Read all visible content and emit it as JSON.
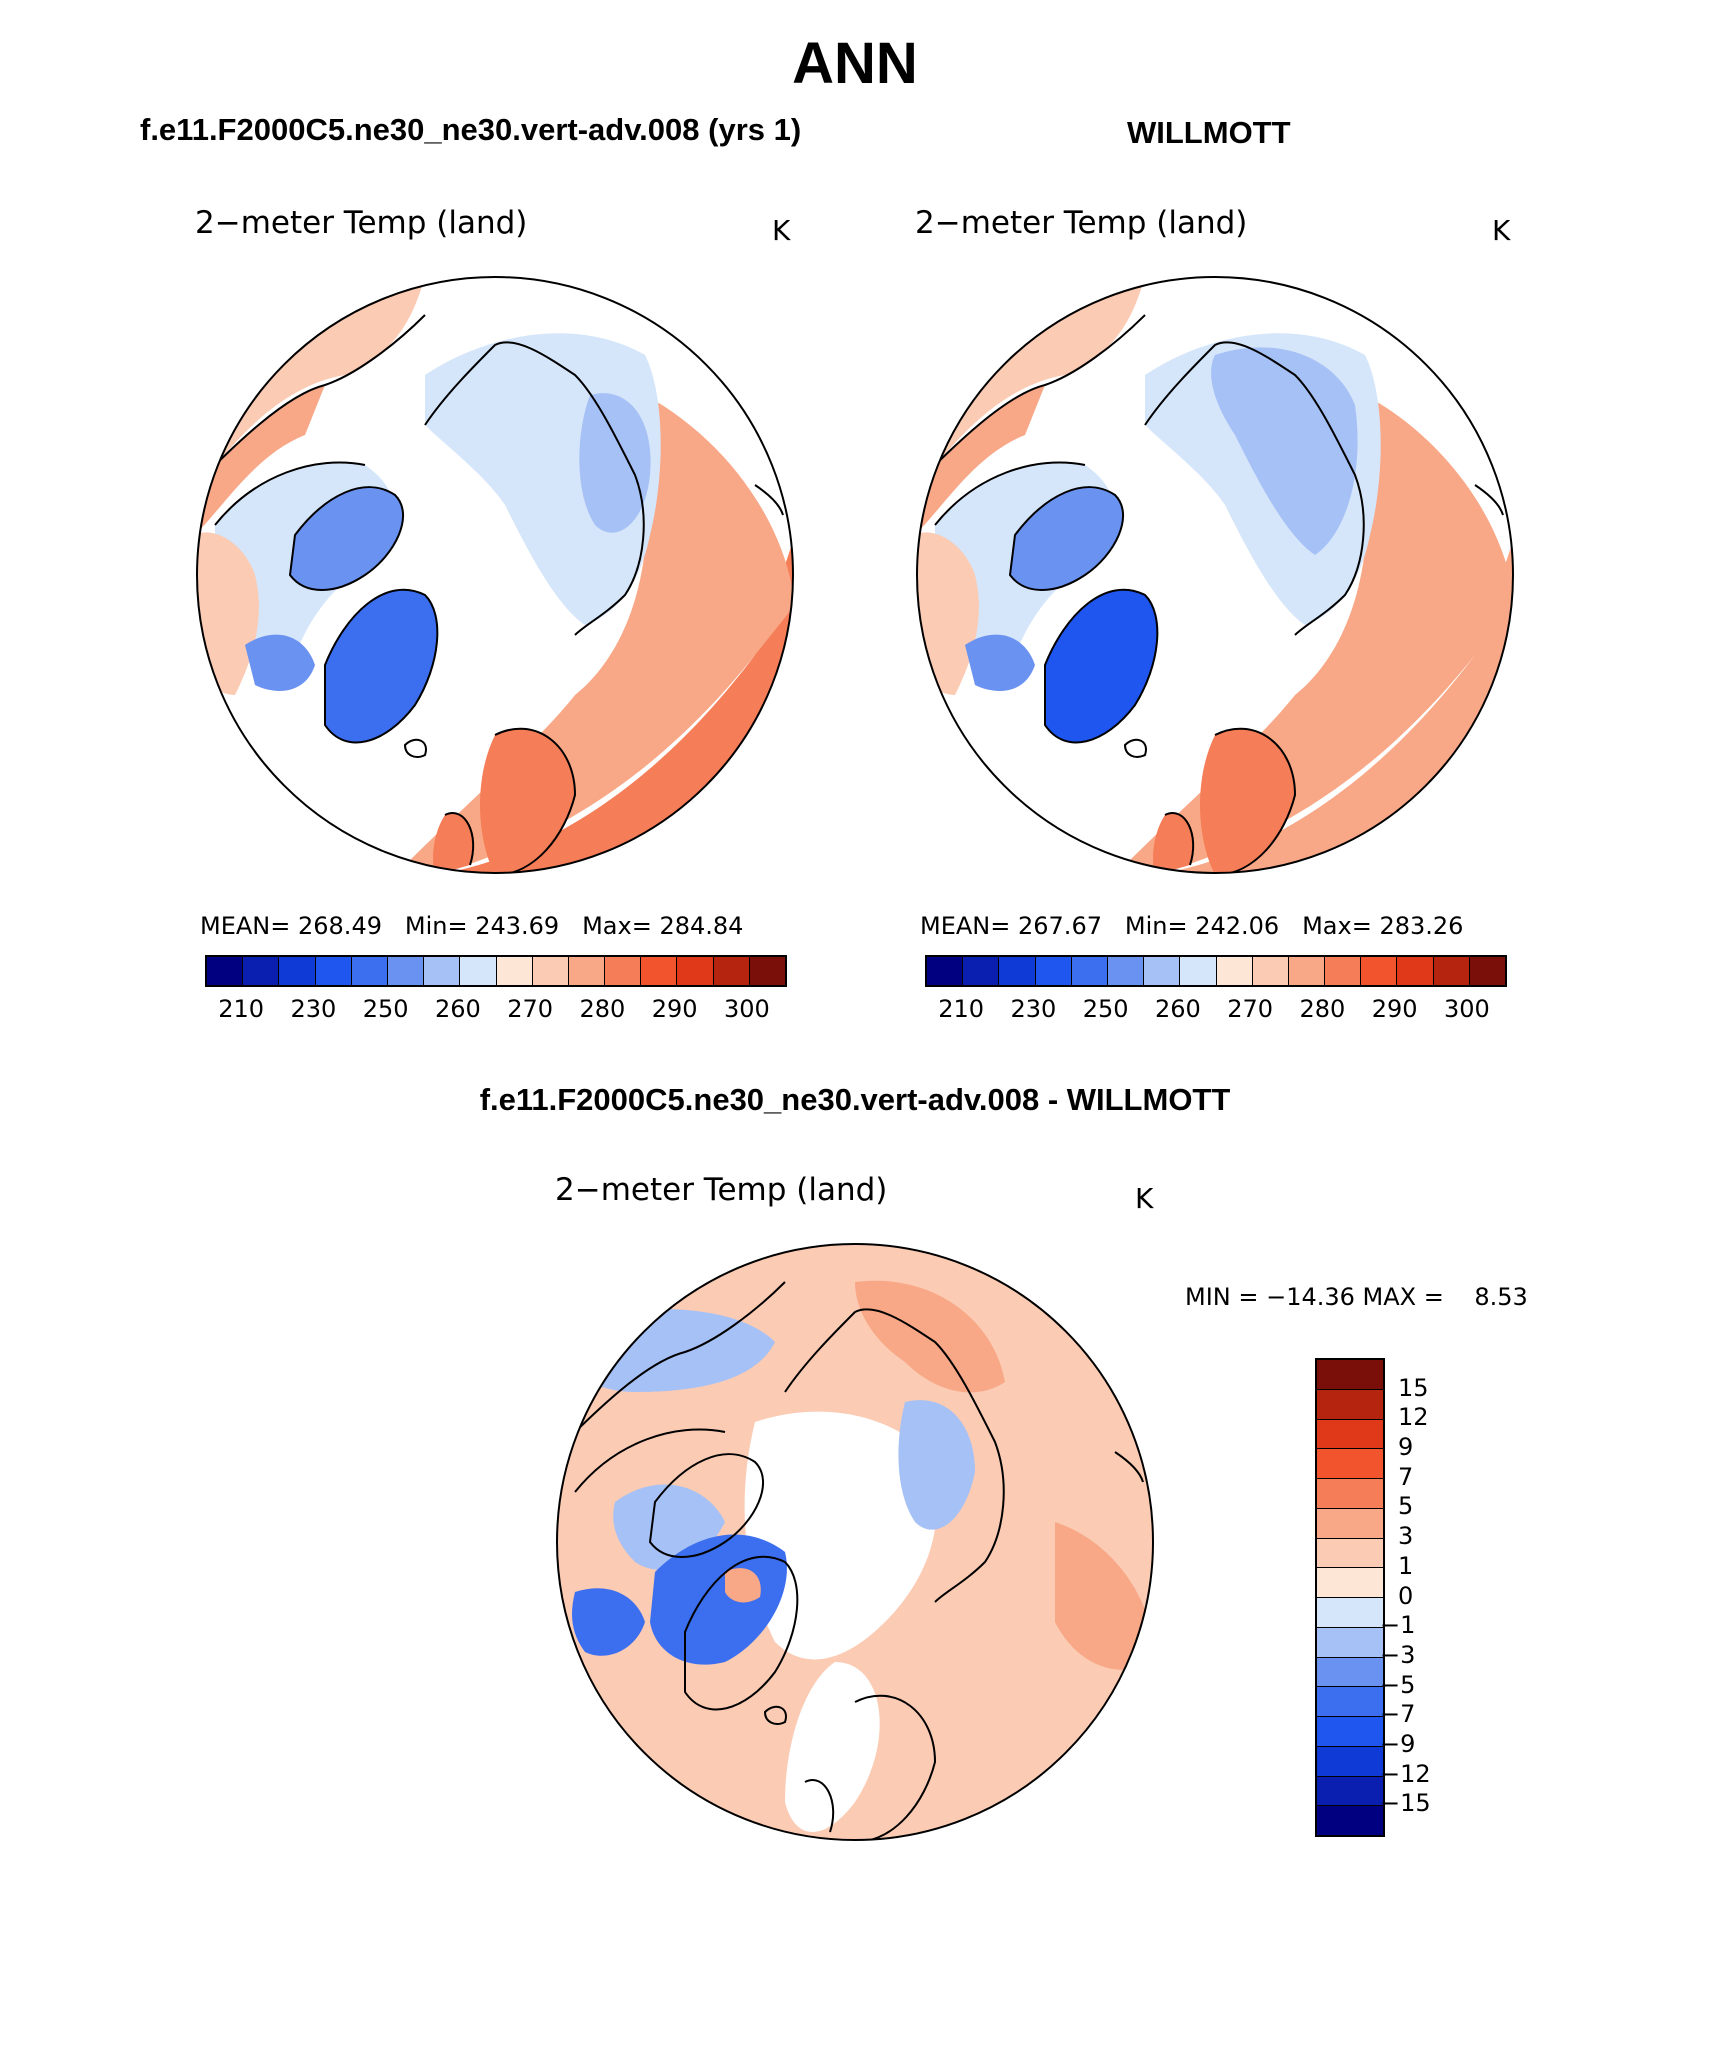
{
  "figure": {
    "title": "ANN",
    "panel_left_title": "f.e11.F2000C5.ne30_ne30.vert-adv.008 (yrs 1)",
    "panel_right_title": "WILLMOTT",
    "diff_title": "f.e11.F2000C5.ne30_ne30.vert-adv.008 - WILLMOTT"
  },
  "panels": [
    {
      "variable": "2−meter Temp (land)",
      "units": "K",
      "mean_label": "MEAN=",
      "mean": "268.49",
      "min_label": "Min=",
      "min": "243.69",
      "max_label": "Max=",
      "max": "284.84"
    },
    {
      "variable": "2−meter Temp (land)",
      "units": "K",
      "mean_label": "MEAN=",
      "mean": "267.67",
      "min_label": "Min=",
      "min": "242.06",
      "max_label": "Max=",
      "max": "283.26"
    },
    {
      "variable": "2−meter Temp (land)",
      "units": "K",
      "minmax_text": "MIN = −14.36 MAX =    8.53"
    }
  ],
  "colorbar_abs": {
    "colors": [
      "#000080",
      "#0a1fb0",
      "#0f3ad6",
      "#1e56ef",
      "#3b6fef",
      "#6a92f0",
      "#a6c1f5",
      "#d6e6fa",
      "#fde6d6",
      "#fbcbb4",
      "#f8a886",
      "#f57d57",
      "#f2542e",
      "#e0391a",
      "#b5240f",
      "#7a0f0a"
    ],
    "ticks": [
      "210",
      "230",
      "250",
      "260",
      "270",
      "280",
      "290",
      "300"
    ]
  },
  "colorbar_diff": {
    "colors": [
      "#7a0f0a",
      "#b5240f",
      "#e0391a",
      "#f2542e",
      "#f57d57",
      "#f8a886",
      "#fbcbb4",
      "#fde6d6",
      "#d6e6fa",
      "#a6c1f5",
      "#6a92f0",
      "#3b6fef",
      "#1e56ef",
      "#0f3ad6",
      "#0a1fb0",
      "#000080"
    ],
    "ticks": [
      "15",
      "12",
      "9",
      "7",
      "5",
      "3",
      "1",
      "0",
      "−1",
      "−3",
      "−5",
      "−7",
      "−9",
      "−12",
      "−15"
    ]
  },
  "map_colors": {
    "ocean": "#ffffff",
    "ice_sheet_left": "#3b6fef",
    "ice_sheet_right": "#1e56ef",
    "siberia": "#d6e6fa",
    "siberia_core": "#a6c1f5",
    "canada": "#d6e6fa",
    "arctic_islands": "#6a92f0",
    "alaska": "#fbcbb4",
    "southern_warm": "#f8a886",
    "southern_hot": "#f57d57",
    "europe": "#f57d57",
    "diff_warm": "#fbcbb4",
    "diff_hot": "#f8a886",
    "diff_cool": "#a6c1f5",
    "diff_cold": "#3b6fef",
    "coast": "#000000"
  }
}
